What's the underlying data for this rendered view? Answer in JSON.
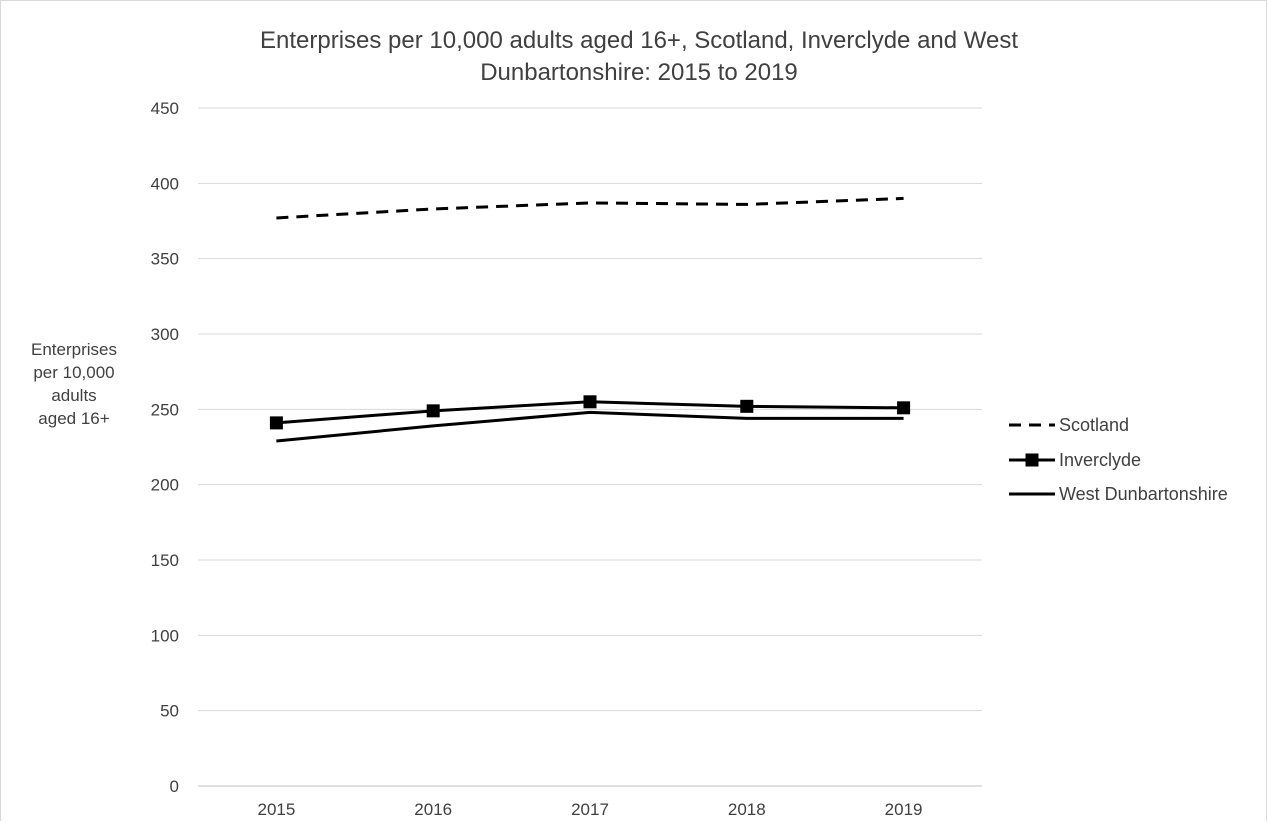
{
  "chart_data": {
    "type": "line",
    "title": "Enterprises per 10,000 adults aged 16+, Scotland, Inverclyde and West Dunbartonshire:  2015 to 2019",
    "title_lines": [
      "Enterprises per 10,000 adults aged 16+, Scotland, Inverclyde and West",
      "Dunbartonshire:  2015 to 2019"
    ],
    "ylabel": "Enterprises per 10,000 adults aged 16+",
    "ylabel_lines": [
      "Enterprises",
      "per 10,000",
      "adults",
      "aged 16+"
    ],
    "xlabel": "",
    "categories": [
      "2015",
      "2016",
      "2017",
      "2018",
      "2019"
    ],
    "ylim": [
      0,
      450
    ],
    "yticks": [
      0,
      50,
      100,
      150,
      200,
      250,
      300,
      350,
      400,
      450
    ],
    "grid": true,
    "legend_position": "right",
    "series": [
      {
        "name": "Scotland",
        "values": [
          377,
          383,
          387,
          386,
          390
        ],
        "style": "dashed",
        "marker": "none",
        "color": "#000000"
      },
      {
        "name": "Inverclyde",
        "values": [
          241,
          249,
          255,
          252,
          251
        ],
        "style": "solid",
        "marker": "square",
        "color": "#000000"
      },
      {
        "name": "West Dunbartonshire",
        "values": [
          229,
          239,
          248,
          244,
          244
        ],
        "style": "solid",
        "marker": "none",
        "color": "#000000"
      }
    ]
  }
}
